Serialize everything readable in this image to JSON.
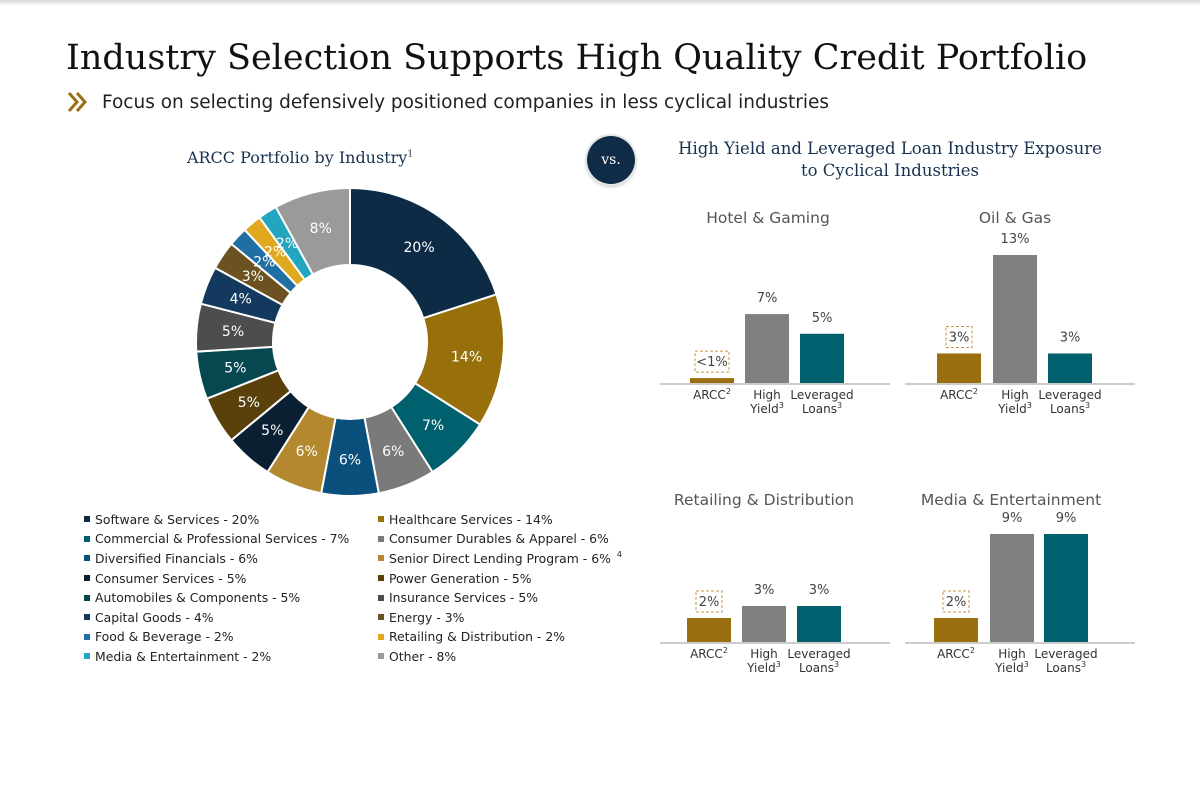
{
  "page": {
    "title": "Industry Selection Supports High Quality Credit Portfolio",
    "subtitle": "Focus on selecting defensively positioned companies in less cyclical industries",
    "vs_label": "vs.",
    "left_chart_title": "ARCC Portfolio by Industry",
    "left_chart_title_sup": "1",
    "right_title_line1": "High Yield and Leveraged Loan Industry Exposure",
    "right_title_line2": "to Cyclical Industries",
    "icons": {
      "bullet": "double-chevron-right-icon"
    },
    "colors": {
      "navy": "#0f2b45",
      "gold": "#9a6f10",
      "gray": "#808080",
      "teal": "#00606d",
      "text_dark": "#17314f"
    }
  },
  "chart_data": [
    {
      "type": "pie",
      "title": "ARCC Portfolio by Industry",
      "slices": [
        {
          "name": "Software & Services",
          "value": 20,
          "label": "20%",
          "legend": "Software & Services - 20%",
          "color": "#0d2b45"
        },
        {
          "name": "Healthcare Services",
          "value": 14,
          "label": "14%",
          "legend": "Healthcare Services - 14%",
          "color": "#98700b"
        },
        {
          "name": "Commercial & Professional Services",
          "value": 7,
          "label": "7%",
          "legend": "Commercial & Professional Services - 7%",
          "color": "#00606d"
        },
        {
          "name": "Consumer Durables & Apparel",
          "value": 6,
          "label": "6%",
          "legend": "Consumer Durables & Apparel - 6%",
          "color": "#7a7a7a"
        },
        {
          "name": "Diversified Financials",
          "value": 6,
          "label": "6%",
          "legend": "Diversified Financials - 6%",
          "color": "#0b4f7d"
        },
        {
          "name": "Senior Direct Lending Program",
          "value": 6,
          "label": "6%",
          "legend": "Senior Direct Lending Program - 6%",
          "legend_sup": "4",
          "color": "#b3882e"
        },
        {
          "name": "Consumer Services",
          "value": 5,
          "label": "5%",
          "legend": "Consumer Services - 5%",
          "color": "#0a1f31"
        },
        {
          "name": "Power Generation",
          "value": 5,
          "label": "5%",
          "legend": "Power Generation - 5%",
          "color": "#5a400b"
        },
        {
          "name": "Automobiles & Components",
          "value": 5,
          "label": "5%",
          "legend": "Automobiles & Components - 5%",
          "color": "#07474f"
        },
        {
          "name": "Insurance Services",
          "value": 5,
          "label": "5%",
          "legend": "Insurance Services - 5%",
          "color": "#4d4d4d"
        },
        {
          "name": "Capital Goods",
          "value": 4,
          "label": "4%",
          "legend": "Capital Goods - 4%",
          "color": "#133a5e"
        },
        {
          "name": "Energy",
          "value": 3,
          "label": "3%",
          "legend": "Energy - 3%",
          "color": "#6b5220"
        },
        {
          "name": "Food & Beverage",
          "value": 2,
          "label": "2%",
          "legend": "Food & Beverage - 2%",
          "color": "#1f6fa5"
        },
        {
          "name": "Retailing & Distribution",
          "value": 2,
          "label": "2%",
          "legend": "Retailing & Distribution - 2%",
          "color": "#e0a81e"
        },
        {
          "name": "Media & Entertainment",
          "value": 2,
          "label": "2%",
          "legend": "Media & Entertainment - 2%",
          "color": "#22a6bf"
        },
        {
          "name": "Other",
          "value": 8,
          "label": "8%",
          "legend": "Other - 8%",
          "color": "#9a9a9a"
        }
      ],
      "legend_order": [
        "Software & Services",
        "Healthcare Services",
        "Commercial & Professional Services",
        "Consumer Durables & Apparel",
        "Diversified Financials",
        "Senior Direct Lending Program",
        "Consumer Services",
        "Power Generation",
        "Automobiles & Components",
        "Insurance Services",
        "Capital Goods",
        "Energy",
        "Food & Beverage",
        "Retailing & Distribution",
        "Media & Entertainment",
        "Other"
      ]
    },
    {
      "type": "bar",
      "title": "Hotel & Gaming",
      "categories": [
        "ARCC",
        "High Yield",
        "Leveraged Loans"
      ],
      "category_sups": [
        "2",
        "3",
        "3"
      ],
      "values": [
        0.5,
        7,
        5
      ],
      "labels": [
        "<1%",
        "7%",
        "5%"
      ],
      "colors": [
        "#9a6f10",
        "#808080",
        "#00606d"
      ],
      "ylim": [
        0,
        13
      ]
    },
    {
      "type": "bar",
      "title": "Oil & Gas",
      "categories": [
        "ARCC",
        "High Yield",
        "Leveraged Loans"
      ],
      "category_sups": [
        "2",
        "3",
        "3"
      ],
      "values": [
        3,
        13,
        3
      ],
      "labels": [
        "3%",
        "13%",
        "3%"
      ],
      "colors": [
        "#9a6f10",
        "#808080",
        "#00606d"
      ],
      "ylim": [
        0,
        13
      ]
    },
    {
      "type": "bar",
      "title": "Retailing & Distribution",
      "categories": [
        "ARCC",
        "High Yield",
        "Leveraged Loans"
      ],
      "category_sups": [
        "2",
        "3",
        "3"
      ],
      "values": [
        2,
        3,
        3
      ],
      "labels": [
        "2%",
        "3%",
        "3%"
      ],
      "colors": [
        "#9a6f10",
        "#808080",
        "#00606d"
      ],
      "ylim": [
        0,
        9
      ]
    },
    {
      "type": "bar",
      "title": "Media & Entertainment",
      "categories": [
        "ARCC",
        "High Yield",
        "Leveraged Loans"
      ],
      "category_sups": [
        "2",
        "3",
        "3"
      ],
      "values": [
        2,
        9,
        9
      ],
      "labels": [
        "2%",
        "9%",
        "9%"
      ],
      "colors": [
        "#9a6f10",
        "#808080",
        "#00606d"
      ],
      "ylim": [
        0,
        9
      ]
    }
  ]
}
